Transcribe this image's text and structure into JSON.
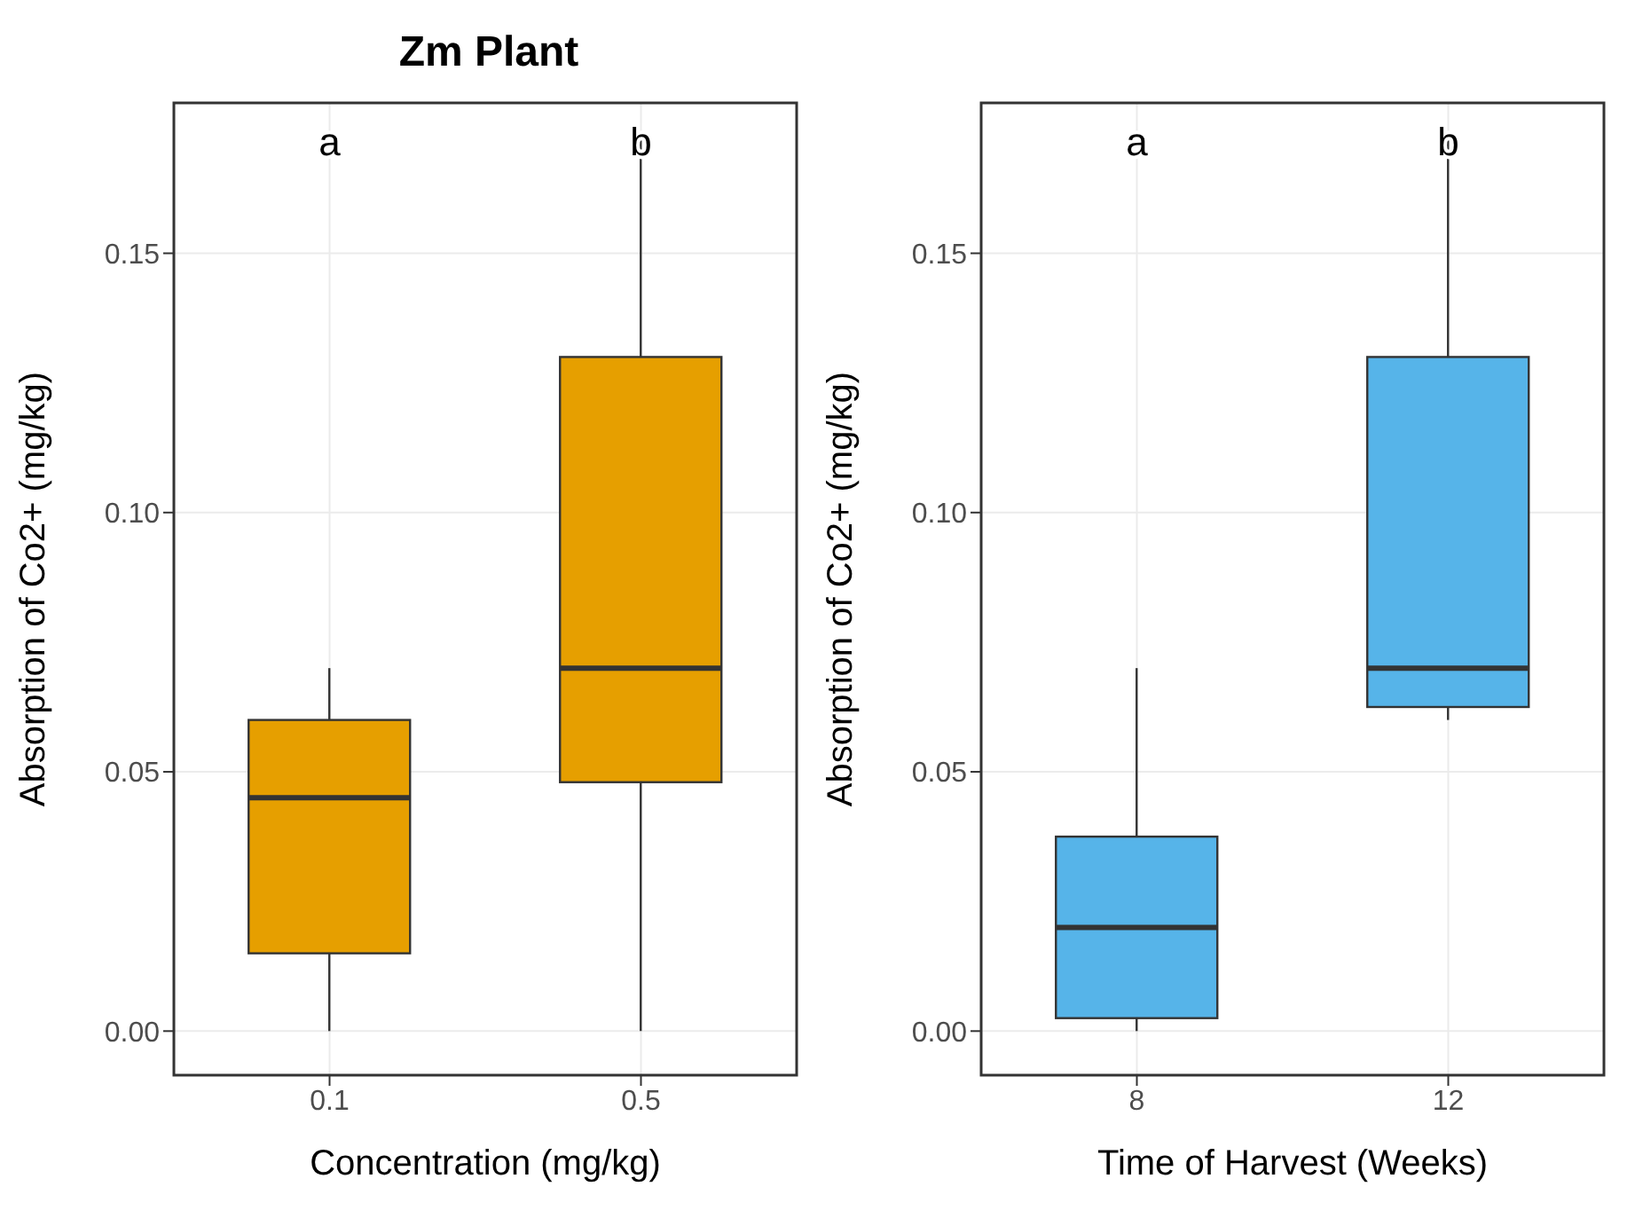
{
  "chart_data": [
    {
      "type": "box",
      "title": "Zm Plant",
      "xlabel": "Concentration (mg/kg)",
      "ylabel": "Absorption of Co2+ (mg/kg)",
      "categories": [
        "0.1",
        "0.5"
      ],
      "series": [
        {
          "color": "#e69f00",
          "boxes": [
            {
              "low": 0.0,
              "q1": 0.015,
              "median": 0.045,
              "q3": 0.06,
              "high": 0.07
            },
            {
              "low": 0.0,
              "q1": 0.048,
              "median": 0.07,
              "q3": 0.13,
              "high": 0.173
            }
          ]
        }
      ],
      "ylim": [
        -0.0085,
        0.179
      ],
      "yticks": [
        {
          "value": 0,
          "label": "0.00"
        },
        {
          "value": 0.05,
          "label": "0.05"
        },
        {
          "value": 0.1,
          "label": "0.10"
        },
        {
          "value": 0.15,
          "label": "0.15"
        }
      ],
      "grid": true,
      "legend": false,
      "annotations": [
        "a",
        "b"
      ]
    },
    {
      "type": "box",
      "xlabel": "Time of Harvest (Weeks)",
      "ylabel": "Absorption of Co2+ (mg/kg)",
      "categories": [
        "8",
        "12"
      ],
      "series": [
        {
          "color": "#56b4e9",
          "boxes": [
            {
              "low": 0.0,
              "q1": 0.0025,
              "median": 0.02,
              "q3": 0.0375,
              "high": 0.07
            },
            {
              "low": 0.06,
              "q1": 0.0625,
              "median": 0.07,
              "q3": 0.13,
              "high": 0.173
            }
          ]
        }
      ],
      "ylim": [
        -0.0085,
        0.179
      ],
      "yticks": [
        {
          "value": 0,
          "label": "0.00"
        },
        {
          "value": 0.05,
          "label": "0.05"
        },
        {
          "value": 0.1,
          "label": "0.10"
        },
        {
          "value": 0.15,
          "label": "0.15"
        }
      ],
      "grid": true,
      "legend": false,
      "annotations": [
        "a",
        "b"
      ]
    }
  ]
}
